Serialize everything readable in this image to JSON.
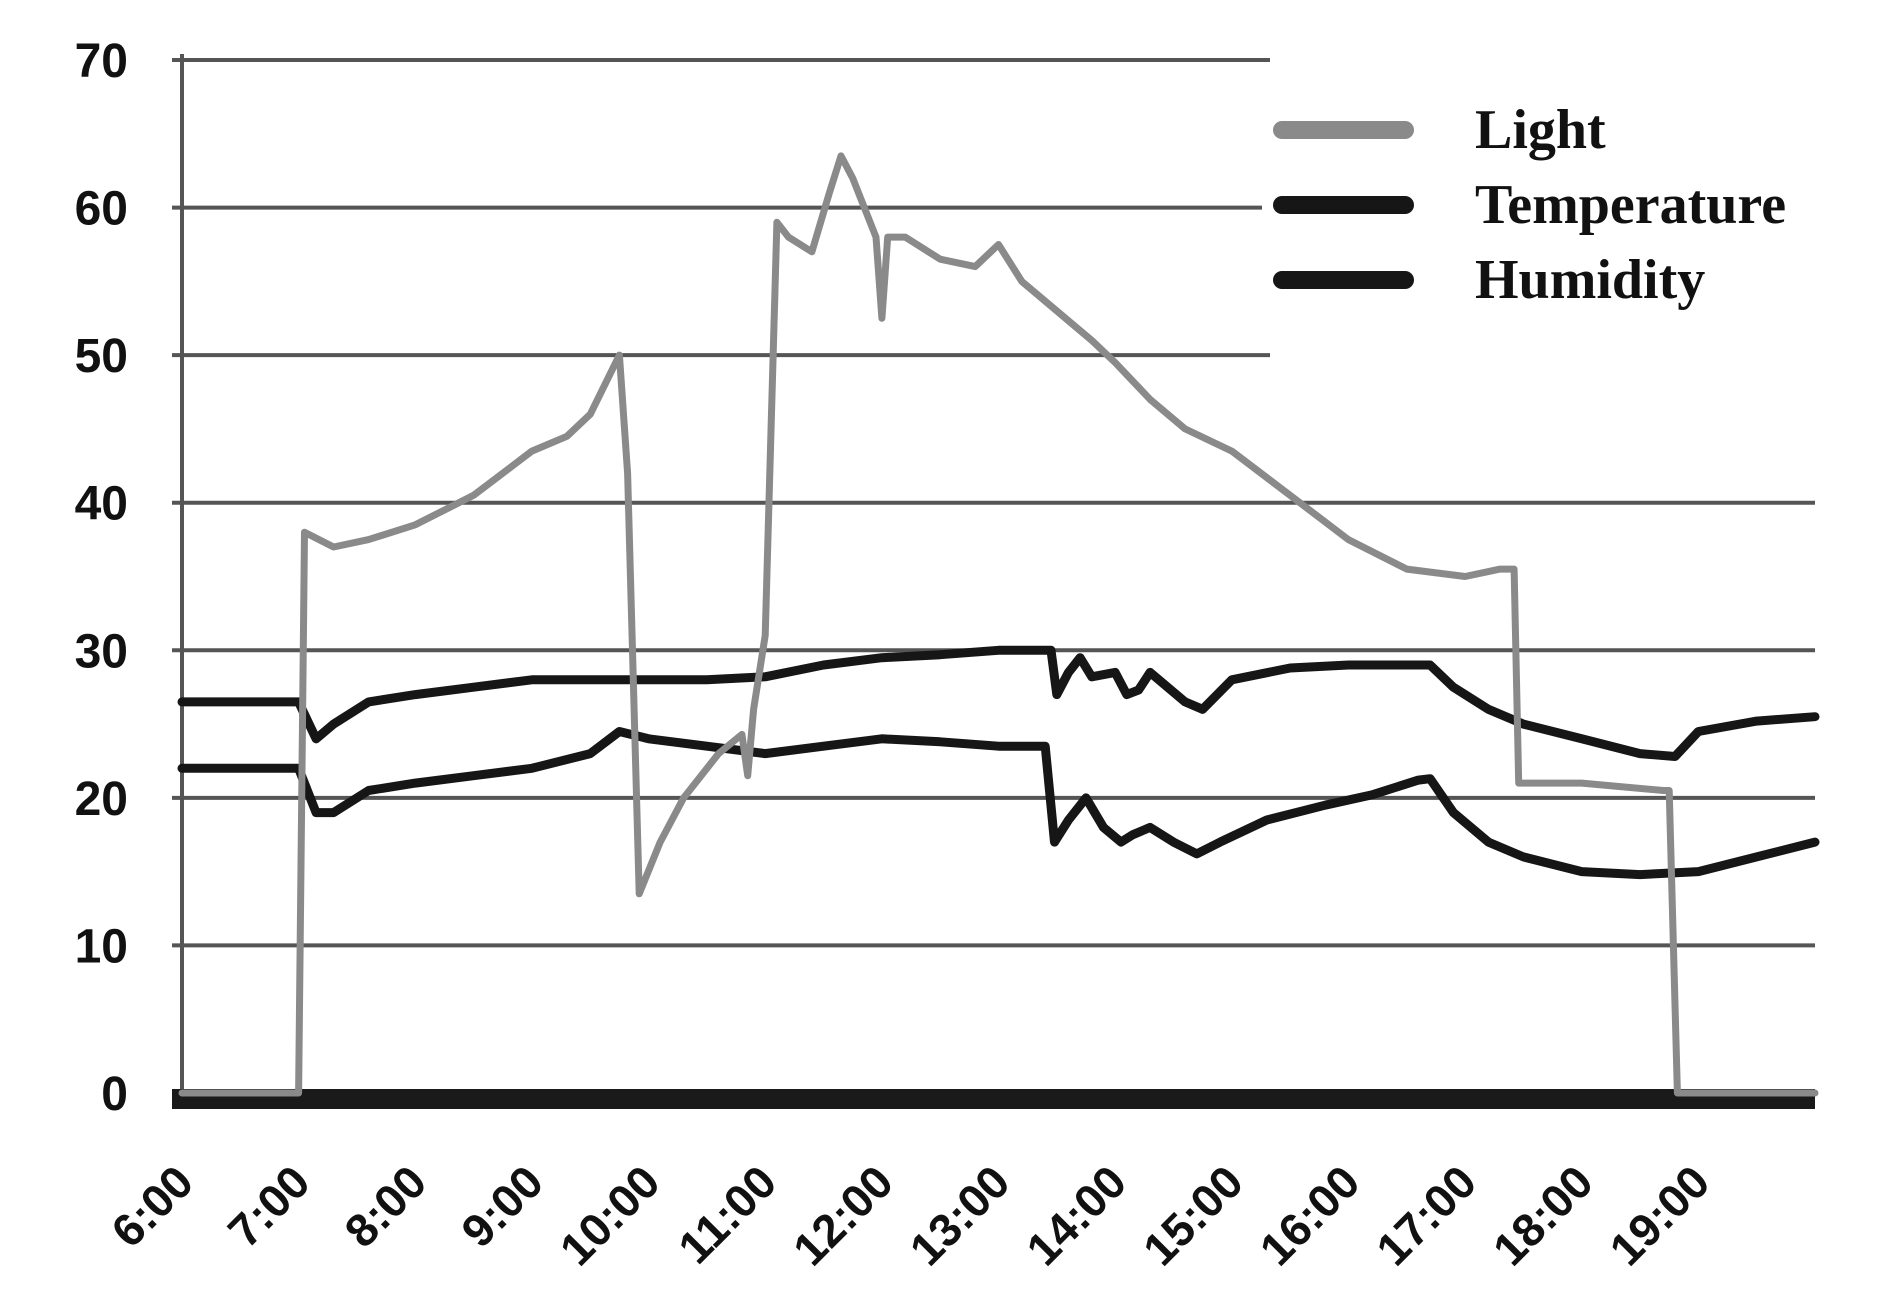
{
  "chart_data": {
    "type": "line",
    "title": "",
    "xlabel": "",
    "ylabel": "",
    "x_ticks": [
      "6:00",
      "7:00",
      "8:00",
      "9:00",
      "10:00",
      "11:00",
      "12:00",
      "13:00",
      "14:00",
      "15:00",
      "16:00",
      "17:00",
      "18:00",
      "19:00"
    ],
    "y_ticks": [
      "0",
      "10",
      "20",
      "30",
      "40",
      "50",
      "60",
      "70"
    ],
    "xlim": [
      6.0,
      20.0
    ],
    "ylim": [
      0,
      70
    ],
    "grid": "horizontal",
    "legend_position": "top-right",
    "colors": {
      "Light": "#8a8a8a",
      "Temperature": "#161616",
      "Humidity": "#161616"
    },
    "series": [
      {
        "name": "Light",
        "points": [
          [
            6.0,
            0
          ],
          [
            7.0,
            0
          ],
          [
            7.05,
            38
          ],
          [
            7.3,
            37
          ],
          [
            7.6,
            37.5
          ],
          [
            8.0,
            38.5
          ],
          [
            8.5,
            40.5
          ],
          [
            9.0,
            43.5
          ],
          [
            9.3,
            44.5
          ],
          [
            9.5,
            46
          ],
          [
            9.75,
            50
          ],
          [
            9.82,
            42
          ],
          [
            9.92,
            13.5
          ],
          [
            10.1,
            17
          ],
          [
            10.3,
            20
          ],
          [
            10.6,
            23
          ],
          [
            10.8,
            24.3
          ],
          [
            10.85,
            21.5
          ],
          [
            10.9,
            26
          ],
          [
            11.0,
            31
          ],
          [
            11.1,
            59
          ],
          [
            11.2,
            58
          ],
          [
            11.4,
            57
          ],
          [
            11.55,
            61
          ],
          [
            11.65,
            63.5
          ],
          [
            11.75,
            62
          ],
          [
            11.95,
            58
          ],
          [
            12.0,
            52.5
          ],
          [
            12.05,
            58
          ],
          [
            12.2,
            58
          ],
          [
            12.5,
            56.5
          ],
          [
            12.8,
            56
          ],
          [
            13.0,
            57.5
          ],
          [
            13.2,
            55
          ],
          [
            13.5,
            53
          ],
          [
            13.8,
            51
          ],
          [
            14.0,
            49.5
          ],
          [
            14.3,
            47
          ],
          [
            14.6,
            45
          ],
          [
            15.0,
            43.5
          ],
          [
            15.5,
            40.5
          ],
          [
            16.0,
            37.5
          ],
          [
            16.5,
            35.5
          ],
          [
            17.0,
            35
          ],
          [
            17.3,
            35.5
          ],
          [
            17.42,
            35.5
          ],
          [
            17.46,
            21
          ],
          [
            18.0,
            21
          ],
          [
            18.7,
            20.5
          ],
          [
            18.75,
            20.5
          ],
          [
            18.82,
            0
          ],
          [
            20.0,
            0
          ]
        ]
      },
      {
        "name": "Temperature",
        "points": [
          [
            6.0,
            26.5
          ],
          [
            7.0,
            26.5
          ],
          [
            7.15,
            24
          ],
          [
            7.3,
            25
          ],
          [
            7.6,
            26.5
          ],
          [
            8.0,
            27
          ],
          [
            8.5,
            27.5
          ],
          [
            9.0,
            28
          ],
          [
            9.5,
            28
          ],
          [
            10.0,
            28
          ],
          [
            10.5,
            28
          ],
          [
            11.0,
            28.2
          ],
          [
            11.5,
            29
          ],
          [
            12.0,
            29.5
          ],
          [
            12.5,
            29.7
          ],
          [
            13.0,
            30
          ],
          [
            13.45,
            30
          ],
          [
            13.5,
            27
          ],
          [
            13.6,
            28.5
          ],
          [
            13.7,
            29.5
          ],
          [
            13.8,
            28.2
          ],
          [
            14.0,
            28.5
          ],
          [
            14.1,
            27
          ],
          [
            14.2,
            27.3
          ],
          [
            14.3,
            28.5
          ],
          [
            14.45,
            27.5
          ],
          [
            14.6,
            26.5
          ],
          [
            14.75,
            26
          ],
          [
            15.0,
            28
          ],
          [
            15.5,
            28.8
          ],
          [
            16.0,
            29
          ],
          [
            16.5,
            29
          ],
          [
            16.7,
            29
          ],
          [
            16.9,
            27.5
          ],
          [
            17.2,
            26
          ],
          [
            17.5,
            25
          ],
          [
            18.0,
            24
          ],
          [
            18.5,
            23
          ],
          [
            18.8,
            22.8
          ],
          [
            19.0,
            24.5
          ],
          [
            19.5,
            25.2
          ],
          [
            20.0,
            25.5
          ]
        ]
      },
      {
        "name": "Humidity",
        "points": [
          [
            6.0,
            22
          ],
          [
            7.0,
            22
          ],
          [
            7.15,
            19
          ],
          [
            7.3,
            19
          ],
          [
            7.6,
            20.5
          ],
          [
            8.0,
            21
          ],
          [
            8.5,
            21.5
          ],
          [
            9.0,
            22
          ],
          [
            9.5,
            23
          ],
          [
            9.75,
            24.5
          ],
          [
            10.0,
            24
          ],
          [
            10.5,
            23.5
          ],
          [
            11.0,
            23
          ],
          [
            11.5,
            23.5
          ],
          [
            12.0,
            24
          ],
          [
            12.5,
            23.8
          ],
          [
            13.0,
            23.5
          ],
          [
            13.4,
            23.5
          ],
          [
            13.48,
            17
          ],
          [
            13.6,
            18.5
          ],
          [
            13.75,
            20
          ],
          [
            13.9,
            18
          ],
          [
            14.05,
            17
          ],
          [
            14.15,
            17.5
          ],
          [
            14.3,
            18
          ],
          [
            14.5,
            17
          ],
          [
            14.7,
            16.2
          ],
          [
            14.9,
            17
          ],
          [
            15.3,
            18.5
          ],
          [
            15.8,
            19.5
          ],
          [
            16.2,
            20.2
          ],
          [
            16.6,
            21.2
          ],
          [
            16.7,
            21.3
          ],
          [
            16.9,
            19
          ],
          [
            17.2,
            17
          ],
          [
            17.5,
            16
          ],
          [
            18.0,
            15
          ],
          [
            18.5,
            14.8
          ],
          [
            19.0,
            15
          ],
          [
            19.5,
            16
          ],
          [
            20.0,
            17
          ]
        ]
      }
    ]
  }
}
